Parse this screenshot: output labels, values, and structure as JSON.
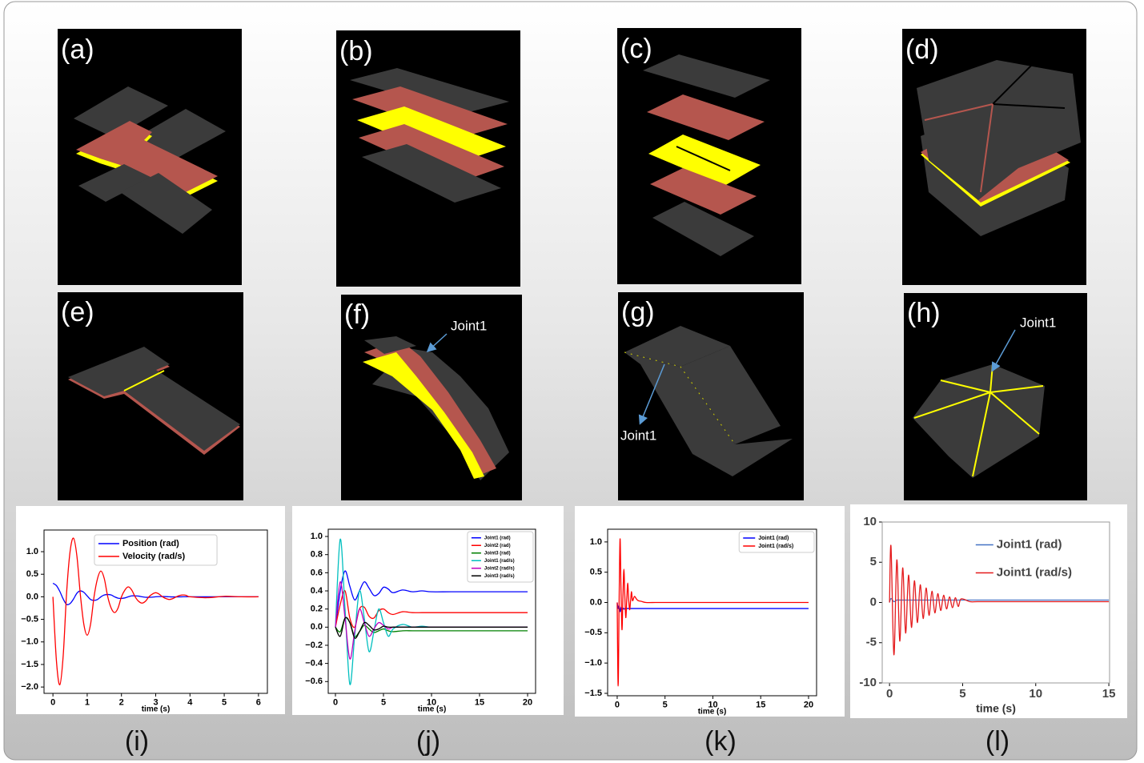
{
  "panels": [
    {
      "label": "(a)"
    },
    {
      "label": "(b)"
    },
    {
      "label": "(c)"
    },
    {
      "label": "(d)"
    },
    {
      "label": "(e)"
    },
    {
      "label": "(f)",
      "annotation": "Joint1"
    },
    {
      "label": "(g)",
      "annotation": "Joint1"
    },
    {
      "label": "(h)",
      "annotation": "Joint1"
    }
  ],
  "chart_data": [
    {
      "type": "line",
      "caption": "(i)",
      "xlabel": "time (s)",
      "grid": false,
      "legend_loc": "upper center",
      "legend_frame": true,
      "xlim": [
        -0.26,
        6.26
      ],
      "xticks": [
        0,
        1,
        2,
        3,
        4,
        5,
        6
      ],
      "ylim": [
        -2.14,
        1.48
      ],
      "yticks": [
        {
          "value": -2,
          "label": "−2.0"
        },
        {
          "value": -1.5,
          "label": "−1.5"
        },
        {
          "value": -1,
          "label": "−1.0"
        },
        {
          "value": -0.5,
          "label": "−0.5"
        },
        {
          "value": 0,
          "label": "0.0"
        },
        0.5,
        {
          "value": 1,
          "label": "1.0"
        }
      ],
      "x": [
        0,
        0.1,
        0.2,
        0.3,
        0.4,
        0.5,
        0.6,
        0.7,
        0.8,
        0.9,
        1.0,
        1.1,
        1.2,
        1.3,
        1.4,
        1.5,
        1.6,
        1.7,
        1.8,
        1.9,
        2.0,
        2.1,
        2.2,
        2.3,
        2.4,
        2.5,
        2.6,
        2.7,
        2.8,
        2.9,
        3.0,
        3.1,
        3.2,
        3.3,
        3.4,
        3.5,
        3.6,
        3.7,
        3.8,
        3.9,
        4.0,
        4.5,
        5,
        5.5,
        6
      ],
      "series": [
        {
          "name": "Position (rad)",
          "color": "#0000ff",
          "values": [
            0.3,
            0.25,
            0.12,
            -0.05,
            -0.17,
            -0.15,
            -0.05,
            0.08,
            0.13,
            0.1,
            0.02,
            -0.06,
            -0.08,
            -0.06,
            0,
            0.04,
            0.05,
            0.04,
            0,
            -0.03,
            -0.035,
            -0.025,
            0,
            0.02,
            0.02,
            0.015,
            0,
            -0.01,
            -0.012,
            -0.008,
            0,
            0.005,
            0.006,
            0.004,
            0,
            -0.003,
            -0.003,
            -0.002,
            0,
            0.001,
            0,
            0,
            0,
            0,
            0
          ]
        },
        {
          "name": "Velocity (rad/s)",
          "color": "#ff0000",
          "values": [
            0,
            -1.4,
            -1.95,
            -1.3,
            0.1,
            1.0,
            1.3,
            0.9,
            0.05,
            -0.6,
            -0.85,
            -0.6,
            0,
            0.4,
            0.57,
            0.4,
            0,
            -0.25,
            -0.35,
            -0.25,
            0,
            0.15,
            0.22,
            0.15,
            0,
            -0.1,
            -0.14,
            -0.1,
            0,
            0.06,
            0.09,
            0.06,
            0,
            -0.04,
            -0.06,
            -0.04,
            0,
            0.03,
            0.04,
            0.03,
            0,
            -0.02,
            0.01,
            0,
            0
          ]
        }
      ]
    },
    {
      "type": "line",
      "caption": "(j)",
      "xlabel": "time (s)",
      "grid": false,
      "legend_loc": "upper right",
      "legend_frame": true,
      "xlim": [
        -0.75,
        20.83
      ],
      "xticks": [
        0,
        5,
        10,
        15,
        20
      ],
      "ylim": [
        -0.73,
        1.08
      ],
      "yticks": [
        {
          "value": -0.6,
          "label": "−0.6"
        },
        {
          "value": -0.4,
          "label": "−0.4"
        },
        {
          "value": -0.2,
          "label": "−0.2"
        },
        {
          "value": 0,
          "label": "0.0"
        },
        0.2,
        0.4,
        0.6,
        0.8,
        {
          "value": 1,
          "label": "1.0"
        }
      ],
      "x": [
        0,
        0.5,
        1,
        1.5,
        2,
        2.5,
        3,
        3.5,
        4,
        4.5,
        5,
        5.5,
        6,
        7,
        8,
        9,
        10,
        12,
        15,
        20
      ],
      "series": [
        {
          "name": "Joint1 (rad)",
          "color": "#0000ff",
          "values": [
            0,
            0.4,
            0.62,
            0.45,
            0.3,
            0.4,
            0.5,
            0.43,
            0.35,
            0.37,
            0.44,
            0.42,
            0.38,
            0.41,
            0.39,
            0.4,
            0.39,
            0.39,
            0.39,
            0.39
          ]
        },
        {
          "name": "Joint2 (rad)",
          "color": "#ff0000",
          "values": [
            0,
            0.25,
            0.4,
            0.1,
            0,
            0.2,
            0.22,
            0.12,
            0.1,
            0.18,
            0.2,
            0.16,
            0.14,
            0.17,
            0.16,
            0.16,
            0.16,
            0.16,
            0.16,
            0.16
          ]
        },
        {
          "name": "Joint3 (rad)",
          "color": "#008000",
          "values": [
            0,
            -0.05,
            0.1,
            0.05,
            -0.1,
            -0.05,
            0.02,
            -0.02,
            -0.06,
            -0.04,
            -0.02,
            -0.04,
            -0.05,
            -0.04,
            -0.04,
            -0.04,
            -0.04,
            -0.04,
            -0.04,
            -0.04
          ]
        },
        {
          "name": "Joint1 (rad/s)",
          "color": "#00bfbf",
          "values": [
            0,
            0.97,
            0.2,
            -0.63,
            -0.1,
            0.4,
            0.1,
            -0.27,
            -0.05,
            0.2,
            0.05,
            -0.1,
            -0.02,
            0.03,
            0,
            0.01,
            0,
            0,
            0,
            0
          ]
        },
        {
          "name": "Joint2 (rad/s)",
          "color": "#bf00bf",
          "values": [
            0,
            0.5,
            0.1,
            -0.35,
            -0.05,
            0.2,
            0.05,
            -0.1,
            -0.02,
            0.05,
            0.02,
            -0.02,
            0,
            0,
            0,
            0,
            0,
            0,
            0,
            0
          ]
        },
        {
          "name": "Joint3 (rad/s)",
          "color": "#000000",
          "values": [
            0,
            -0.1,
            0.1,
            0.05,
            -0.12,
            -0.05,
            0.05,
            0.02,
            -0.03,
            -0.02,
            0.01,
            0,
            0,
            0,
            0,
            0,
            0,
            0,
            0,
            0
          ]
        }
      ]
    },
    {
      "type": "line",
      "caption": "(k)",
      "xlabel": "time (s)",
      "grid": false,
      "legend_loc": "upper right",
      "legend_frame": true,
      "xlim": [
        -1.0,
        20.84
      ],
      "xticks": [
        0,
        5,
        10,
        15,
        20
      ],
      "ylim": [
        -1.54,
        1.21
      ],
      "yticks": [
        {
          "value": -1.5,
          "label": "−1.5"
        },
        {
          "value": -1,
          "label": "−1.0"
        },
        {
          "value": -0.5,
          "label": "−0.5"
        },
        {
          "value": 0,
          "label": "0.0"
        },
        0.5,
        {
          "value": 1,
          "label": "1.0"
        }
      ],
      "x": [
        0,
        0.1,
        0.2,
        0.3,
        0.4,
        0.5,
        0.6,
        0.7,
        0.8,
        0.9,
        1.0,
        1.1,
        1.2,
        1.3,
        1.4,
        1.5,
        1.6,
        1.8,
        2,
        2.2,
        2.5,
        3,
        4,
        5,
        10,
        15,
        20
      ],
      "series": [
        {
          "name": "Joint1 (rad)",
          "color": "#0000ff",
          "values": [
            0,
            -0.1,
            -0.05,
            -0.15,
            -0.08,
            -0.12,
            -0.09,
            -0.11,
            -0.1,
            -0.1,
            -0.1,
            -0.1,
            -0.1,
            -0.1,
            -0.1,
            -0.1,
            -0.1,
            -0.1,
            -0.1,
            -0.1,
            -0.1,
            -0.1,
            -0.1,
            -0.1,
            -0.1,
            -0.1,
            -0.1
          ]
        },
        {
          "name": "Joint1 (rad/s)",
          "color": "#ff0000",
          "values": [
            0,
            -1.38,
            0,
            1.05,
            0.2,
            -0.45,
            0.1,
            0.55,
            0.1,
            -0.25,
            0.05,
            0.32,
            0.05,
            -0.12,
            0.03,
            0.18,
            0.03,
            0.1,
            0.06,
            0.03,
            0.02,
            0,
            0,
            0,
            0,
            0,
            0
          ]
        }
      ]
    },
    {
      "type": "line",
      "caption": "(l)",
      "xlabel": "time (s)",
      "grid": false,
      "legend_loc": "upper right",
      "legend_frame": false,
      "xlim": [
        -0.5,
        15.05
      ],
      "xticks": [
        0,
        5,
        10,
        15
      ],
      "ylim": [
        -10,
        10
      ],
      "yticks": [
        -10,
        -5,
        0,
        5,
        10
      ],
      "x": [
        0,
        0.1,
        0.3,
        0.5,
        0.7,
        0.9,
        1.1,
        1.3,
        1.5,
        1.7,
        1.9,
        2.1,
        2.3,
        2.5,
        2.7,
        2.9,
        3.1,
        3.3,
        3.5,
        3.7,
        3.9,
        4.1,
        4.3,
        4.5,
        4.7,
        4.9,
        5.5,
        6,
        7,
        8,
        10,
        12,
        15
      ],
      "series": [
        {
          "name": "Joint1 (rad)",
          "color": "#4472c4",
          "values": [
            0,
            0.5,
            0.1,
            0.3,
            0.3,
            0.3,
            0.3,
            0.3,
            0.3,
            0.3,
            0.3,
            0.3,
            0.3,
            0.3,
            0.3,
            0.3,
            0.3,
            0.3,
            0.3,
            0.3,
            0.3,
            0.3,
            0.3,
            0.3,
            0.3,
            0.3,
            0.3,
            0.3,
            0.3,
            0.3,
            0.3,
            0.3,
            0.3
          ]
        },
        {
          "name": "Joint1 (rad/s)",
          "color": "#e41a1c",
          "values": [
            0,
            7.0,
            -6.5,
            5.3,
            -4.8,
            4.3,
            -3.8,
            3.4,
            -3.1,
            2.7,
            -2.5,
            2.2,
            -2.0,
            1.8,
            -1.6,
            1.4,
            -1.3,
            1.1,
            -1.0,
            0.9,
            -0.8,
            0.7,
            -0.65,
            0.6,
            -0.5,
            0.45,
            0.1,
            0.1,
            0.1,
            0.1,
            0.1,
            0.1,
            0.1
          ]
        }
      ]
    }
  ]
}
